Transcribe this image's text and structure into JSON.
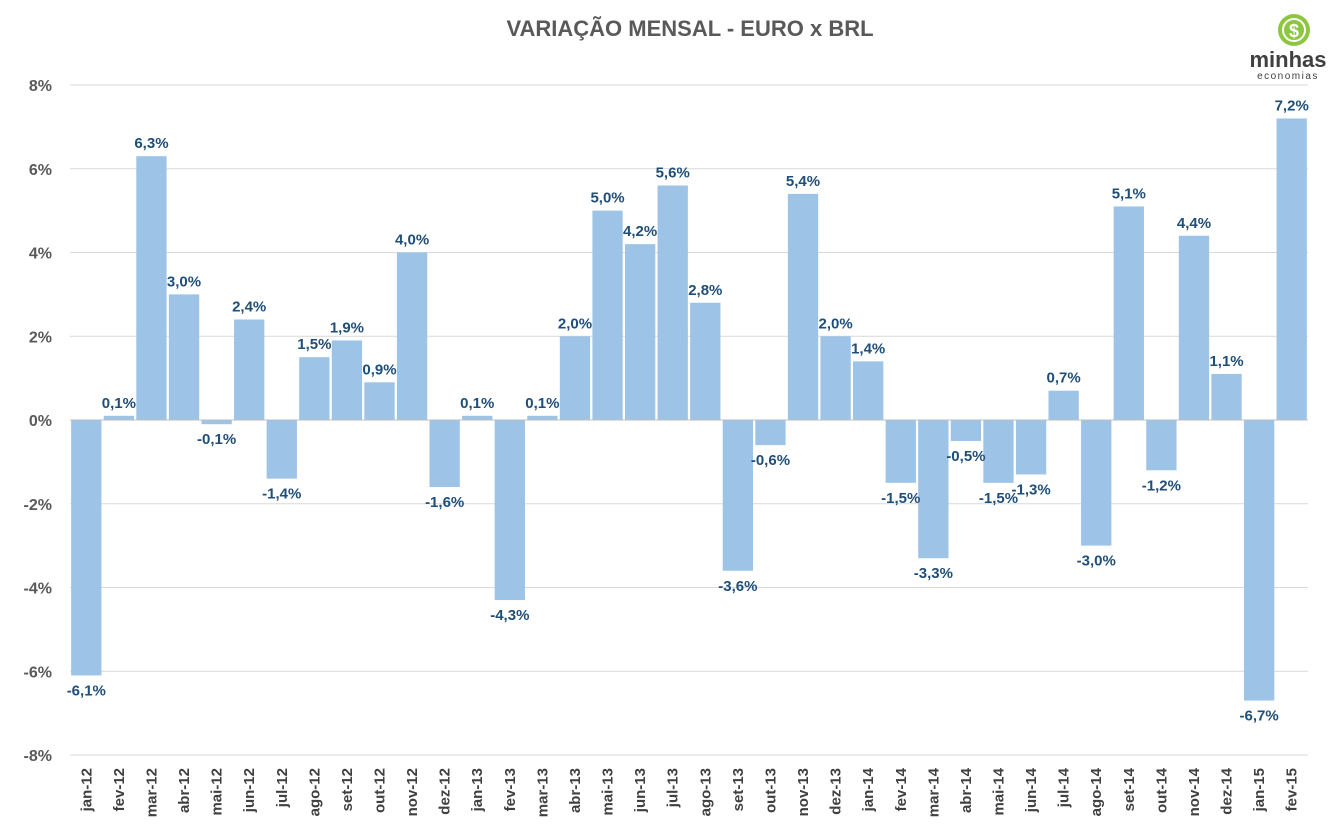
{
  "logo": {
    "name": "minhas",
    "sub": "economias",
    "symbol": "$",
    "color": "#8dc63f"
  },
  "colors": {
    "bar": "#9dc3e6",
    "label": "#1f4e79",
    "grid": "#d9d9d9"
  },
  "chart_data": {
    "type": "bar",
    "title": "VARIAÇÃO MENSAL - EURO x BRL",
    "xlabel": "",
    "ylabel": "",
    "ylim": [
      -8,
      8
    ],
    "yticks": [
      8,
      6,
      4,
      2,
      0,
      -2,
      -4,
      -6,
      -8
    ],
    "ytick_labels": [
      "8%",
      "6%",
      "4%",
      "2%",
      "0%",
      "-2%",
      "-4%",
      "-6%",
      "-8%"
    ],
    "grid": true,
    "legend": "none",
    "categories": [
      "jan-12",
      "fev-12",
      "mar-12",
      "abr-12",
      "mai-12",
      "jun-12",
      "jul-12",
      "ago-12",
      "set-12",
      "out-12",
      "nov-12",
      "dez-12",
      "jan-13",
      "fev-13",
      "mar-13",
      "abr-13",
      "mai-13",
      "jun-13",
      "jul-13",
      "ago-13",
      "set-13",
      "out-13",
      "nov-13",
      "dez-13",
      "jan-14",
      "fev-14",
      "mar-14",
      "abr-14",
      "mai-14",
      "jun-14",
      "jul-14",
      "ago-14",
      "set-14",
      "out-14",
      "nov-14",
      "dez-14",
      "jan-15",
      "fev-15"
    ],
    "values": [
      -6.1,
      0.1,
      6.3,
      3.0,
      -0.1,
      2.4,
      -1.4,
      1.5,
      1.9,
      0.9,
      4.0,
      -1.6,
      0.1,
      -4.3,
      0.1,
      2.0,
      5.0,
      4.2,
      5.6,
      2.8,
      -3.6,
      -0.6,
      5.4,
      2.0,
      1.4,
      -1.5,
      -3.3,
      -0.5,
      -1.5,
      -1.3,
      0.7,
      -3.0,
      5.1,
      -1.2,
      4.4,
      1.1,
      -6.7,
      7.2
    ],
    "data_labels": [
      "-6,1%",
      "0,1%",
      "6,3%",
      "3,0%",
      "-0,1%",
      "2,4%",
      "-1,4%",
      "1,5%",
      "1,9%",
      "0,9%",
      "4,0%",
      "-1,6%",
      "0,1%",
      "-4,3%",
      "0,1%",
      "2,0%",
      "5,0%",
      "4,2%",
      "5,6%",
      "2,8%",
      "-3,6%",
      "-0,6%",
      "5,4%",
      "2,0%",
      "1,4%",
      "-1,5%",
      "-3,3%",
      "-0,5%",
      "-1,5%",
      "-1,3%",
      "0,7%",
      "-3,0%",
      "5,1%",
      "-1,2%",
      "4,4%",
      "1,1%",
      "-6,7%",
      "7,2%"
    ]
  }
}
